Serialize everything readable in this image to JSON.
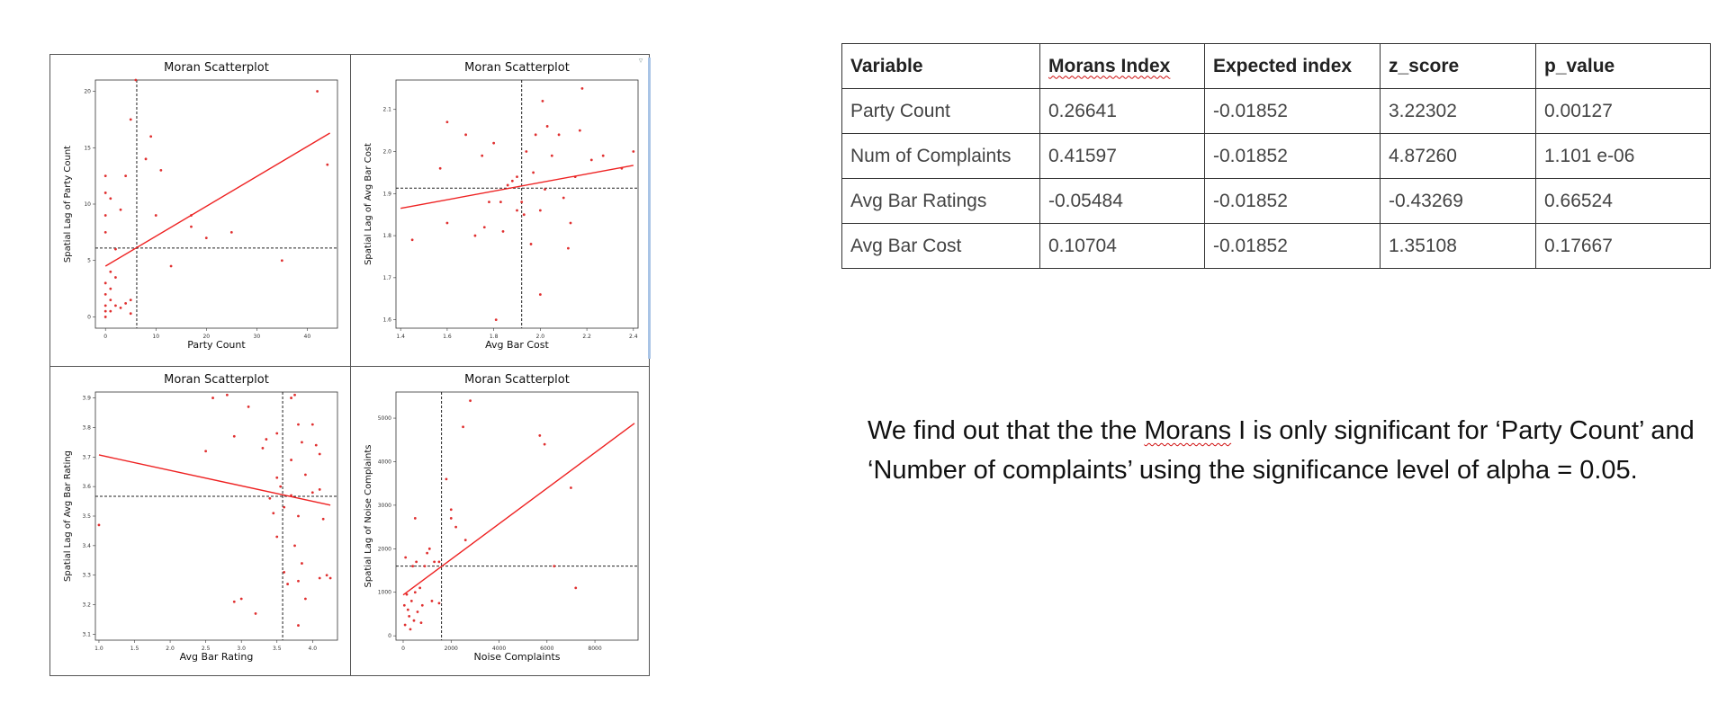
{
  "chart_data": [
    {
      "type": "scatter",
      "title": "Moran Scatterplot",
      "xlabel": "Party Count",
      "ylabel": "Spatial Lag of Party Count",
      "xlim": [
        -2,
        46
      ],
      "ylim": [
        -1,
        21
      ],
      "xticks": [
        0,
        10,
        20,
        30,
        40
      ],
      "yticks": [
        0,
        5,
        10,
        15,
        20
      ],
      "xtick_labels": [
        "0",
        "10",
        "20",
        "30",
        "40"
      ],
      "ytick_labels": [
        "0",
        "5",
        "10",
        "15",
        "20"
      ],
      "mean_x": 6.2,
      "mean_y": 6.1,
      "fit_line": {
        "x": [
          0,
          44.5
        ],
        "y": [
          4.5,
          16.3
        ]
      },
      "points": [
        [
          0,
          12.5
        ],
        [
          0,
          11
        ],
        [
          0,
          9
        ],
        [
          0,
          7.5
        ],
        [
          0,
          3
        ],
        [
          0,
          2
        ],
        [
          0,
          1
        ],
        [
          0,
          0.5
        ],
        [
          0,
          0
        ],
        [
          1,
          10.5
        ],
        [
          1,
          4
        ],
        [
          1,
          2.5
        ],
        [
          1,
          1.5
        ],
        [
          1,
          0.5
        ],
        [
          2,
          6
        ],
        [
          2,
          3.5
        ],
        [
          2,
          1
        ],
        [
          3,
          9.5
        ],
        [
          3,
          0.8
        ],
        [
          4,
          12.5
        ],
        [
          4,
          1.2
        ],
        [
          5,
          17.5
        ],
        [
          5,
          1.5
        ],
        [
          5,
          0.3
        ],
        [
          6,
          21
        ],
        [
          8,
          14
        ],
        [
          9,
          16
        ],
        [
          10,
          9
        ],
        [
          11,
          13
        ],
        [
          13,
          4.5
        ],
        [
          17,
          9
        ],
        [
          17,
          8
        ],
        [
          20,
          7
        ],
        [
          25,
          7.5
        ],
        [
          35,
          5
        ],
        [
          42,
          20
        ],
        [
          44,
          13.5
        ]
      ]
    },
    {
      "type": "scatter",
      "title": "Moran Scatterplot",
      "xlabel": "Avg Bar Cost",
      "ylabel": "Spatial Lag of Avg Bar Cost",
      "xlim": [
        1.38,
        2.42
      ],
      "ylim": [
        1.58,
        2.17
      ],
      "xticks": [
        1.4,
        1.6,
        1.8,
        2.0,
        2.2,
        2.4
      ],
      "yticks": [
        1.6,
        1.7,
        1.8,
        1.9,
        2.0,
        2.1
      ],
      "xtick_labels": [
        "1.4",
        "1.6",
        "1.8",
        "2.0",
        "2.2",
        "2.4"
      ],
      "ytick_labels": [
        "1.6",
        "1.7",
        "1.8",
        "1.9",
        "2.0",
        "2.1"
      ],
      "mean_x": 1.92,
      "mean_y": 1.913,
      "fit_line": {
        "x": [
          1.4,
          2.4
        ],
        "y": [
          1.865,
          1.967
        ]
      },
      "points": [
        [
          1.45,
          1.79
        ],
        [
          1.57,
          1.96
        ],
        [
          1.6,
          2.07
        ],
        [
          1.6,
          1.83
        ],
        [
          1.68,
          2.04
        ],
        [
          1.72,
          1.8
        ],
        [
          1.75,
          1.99
        ],
        [
          1.76,
          1.82
        ],
        [
          1.78,
          1.88
        ],
        [
          1.8,
          2.02
        ],
        [
          1.81,
          1.6
        ],
        [
          1.83,
          1.88
        ],
        [
          1.84,
          1.81
        ],
        [
          1.86,
          1.92
        ],
        [
          1.88,
          1.93
        ],
        [
          1.9,
          1.86
        ],
        [
          1.9,
          1.94
        ],
        [
          1.92,
          1.88
        ],
        [
          1.93,
          1.85
        ],
        [
          1.94,
          2.0
        ],
        [
          1.96,
          1.78
        ],
        [
          1.97,
          1.95
        ],
        [
          1.98,
          2.04
        ],
        [
          2.0,
          1.66
        ],
        [
          2.0,
          1.86
        ],
        [
          2.01,
          2.12
        ],
        [
          2.02,
          1.91
        ],
        [
          2.03,
          2.06
        ],
        [
          2.05,
          1.99
        ],
        [
          2.08,
          2.04
        ],
        [
          2.1,
          1.89
        ],
        [
          2.12,
          1.77
        ],
        [
          2.13,
          1.83
        ],
        [
          2.15,
          1.94
        ],
        [
          2.17,
          2.05
        ],
        [
          2.18,
          2.15
        ],
        [
          2.22,
          1.98
        ],
        [
          2.27,
          1.99
        ],
        [
          2.35,
          1.96
        ],
        [
          2.4,
          2.0
        ]
      ]
    },
    {
      "type": "scatter",
      "title": "Moran Scatterplot",
      "xlabel": "Avg Bar Rating",
      "ylabel": "Spatial Lag of Avg Bar Rating",
      "xlim": [
        0.95,
        4.35
      ],
      "ylim": [
        3.08,
        3.92
      ],
      "xticks": [
        1.0,
        1.5,
        2.0,
        2.5,
        3.0,
        3.5,
        4.0
      ],
      "yticks": [
        3.1,
        3.2,
        3.3,
        3.4,
        3.5,
        3.6,
        3.7,
        3.8,
        3.9
      ],
      "xtick_labels": [
        "1.0",
        "1.5",
        "2.0",
        "2.5",
        "3.0",
        "3.5",
        "4.0"
      ],
      "ytick_labels": [
        "3.1",
        "3.2",
        "3.3",
        "3.4",
        "3.5",
        "3.6",
        "3.7",
        "3.8",
        "3.9"
      ],
      "mean_x": 3.58,
      "mean_y": 3.567,
      "fit_line": {
        "x": [
          1.0,
          4.25
        ],
        "y": [
          3.707,
          3.537
        ]
      },
      "points": [
        [
          1.0,
          3.47
        ],
        [
          2.5,
          3.72
        ],
        [
          2.6,
          3.9
        ],
        [
          2.8,
          3.91
        ],
        [
          2.9,
          3.77
        ],
        [
          2.9,
          3.21
        ],
        [
          3.0,
          3.22
        ],
        [
          3.1,
          3.87
        ],
        [
          3.2,
          3.17
        ],
        [
          3.3,
          3.73
        ],
        [
          3.35,
          3.76
        ],
        [
          3.4,
          3.56
        ],
        [
          3.45,
          3.51
        ],
        [
          3.5,
          3.78
        ],
        [
          3.5,
          3.63
        ],
        [
          3.5,
          3.43
        ],
        [
          3.55,
          3.6
        ],
        [
          3.6,
          3.53
        ],
        [
          3.6,
          3.31
        ],
        [
          3.65,
          3.27
        ],
        [
          3.7,
          3.9
        ],
        [
          3.7,
          3.69
        ],
        [
          3.7,
          3.57
        ],
        [
          3.75,
          3.91
        ],
        [
          3.75,
          3.4
        ],
        [
          3.8,
          3.81
        ],
        [
          3.8,
          3.5
        ],
        [
          3.8,
          3.28
        ],
        [
          3.8,
          3.13
        ],
        [
          3.85,
          3.75
        ],
        [
          3.85,
          3.34
        ],
        [
          3.9,
          3.64
        ],
        [
          3.9,
          3.22
        ],
        [
          4.0,
          3.81
        ],
        [
          4.0,
          3.58
        ],
        [
          4.05,
          3.74
        ],
        [
          4.1,
          3.71
        ],
        [
          4.1,
          3.59
        ],
        [
          4.1,
          3.29
        ],
        [
          4.15,
          3.49
        ],
        [
          4.2,
          3.3
        ],
        [
          4.25,
          3.29
        ]
      ]
    },
    {
      "type": "scatter",
      "title": "Moran Scatterplot",
      "xlabel": "Noise Complaints",
      "ylabel": "Spatial Lag of Noise Complaints",
      "xlim": [
        -300,
        9800
      ],
      "ylim": [
        -100,
        5600
      ],
      "xticks": [
        0,
        2000,
        4000,
        6000,
        8000
      ],
      "yticks": [
        0,
        1000,
        2000,
        3000,
        4000,
        5000
      ],
      "xtick_labels": [
        "0",
        "2000",
        "4000",
        "6000",
        "8000"
      ],
      "ytick_labels": [
        "0",
        "1000",
        "2000",
        "3000",
        "4000",
        "5000"
      ],
      "mean_x": 1600,
      "mean_y": 1600,
      "fit_line": {
        "x": [
          0,
          9650
        ],
        "y": [
          940,
          4880
        ]
      },
      "points": [
        [
          50,
          700
        ],
        [
          80,
          250
        ],
        [
          100,
          1800
        ],
        [
          150,
          950
        ],
        [
          200,
          600
        ],
        [
          250,
          450
        ],
        [
          300,
          150
        ],
        [
          350,
          800
        ],
        [
          400,
          1600
        ],
        [
          450,
          350
        ],
        [
          500,
          2700
        ],
        [
          500,
          1000
        ],
        [
          550,
          1700
        ],
        [
          600,
          550
        ],
        [
          700,
          1100
        ],
        [
          750,
          300
        ],
        [
          800,
          700
        ],
        [
          900,
          1600
        ],
        [
          1000,
          1900
        ],
        [
          1100,
          2000
        ],
        [
          1200,
          800
        ],
        [
          1300,
          1700
        ],
        [
          1500,
          750
        ],
        [
          1500,
          1700
        ],
        [
          1800,
          3600
        ],
        [
          2000,
          2900
        ],
        [
          2000,
          2700
        ],
        [
          2200,
          2500
        ],
        [
          2500,
          4800
        ],
        [
          2600,
          2200
        ],
        [
          2800,
          5400
        ],
        [
          5700,
          4600
        ],
        [
          5900,
          4400
        ],
        [
          6300,
          1600
        ],
        [
          7000,
          3400
        ],
        [
          7200,
          1100
        ]
      ]
    }
  ],
  "table": {
    "headers": [
      "Variable",
      "Morans Index",
      "Expected index",
      "z_score",
      "p_value"
    ],
    "rows": [
      [
        "Party Count",
        "0.26641",
        "-0.01852",
        "3.22302",
        "0.00127"
      ],
      [
        "Num of Complaints",
        "0.41597",
        "-0.01852",
        "4.87260",
        "1.101 e-06"
      ],
      [
        "Avg Bar Ratings",
        "-0.05484",
        "-0.01852",
        "-0.43269",
        "0.66524"
      ],
      [
        "Avg Bar Cost",
        "0.10704",
        "-0.01852",
        "1.35108",
        "0.17667"
      ]
    ]
  },
  "finding": {
    "part1": "We find out that the the ",
    "morans": "Morans",
    "part2": " I is only significant for ‘Party Count’ and ‘Number of complaints’ using the significance level of alpha = 0.05."
  },
  "colors": {
    "points": "#e03030",
    "fit_line": "#ee2222",
    "mean_lines": "#222222",
    "frame": "#555555"
  },
  "icons": {
    "scroll_arrow": "chevron-down-icon"
  }
}
